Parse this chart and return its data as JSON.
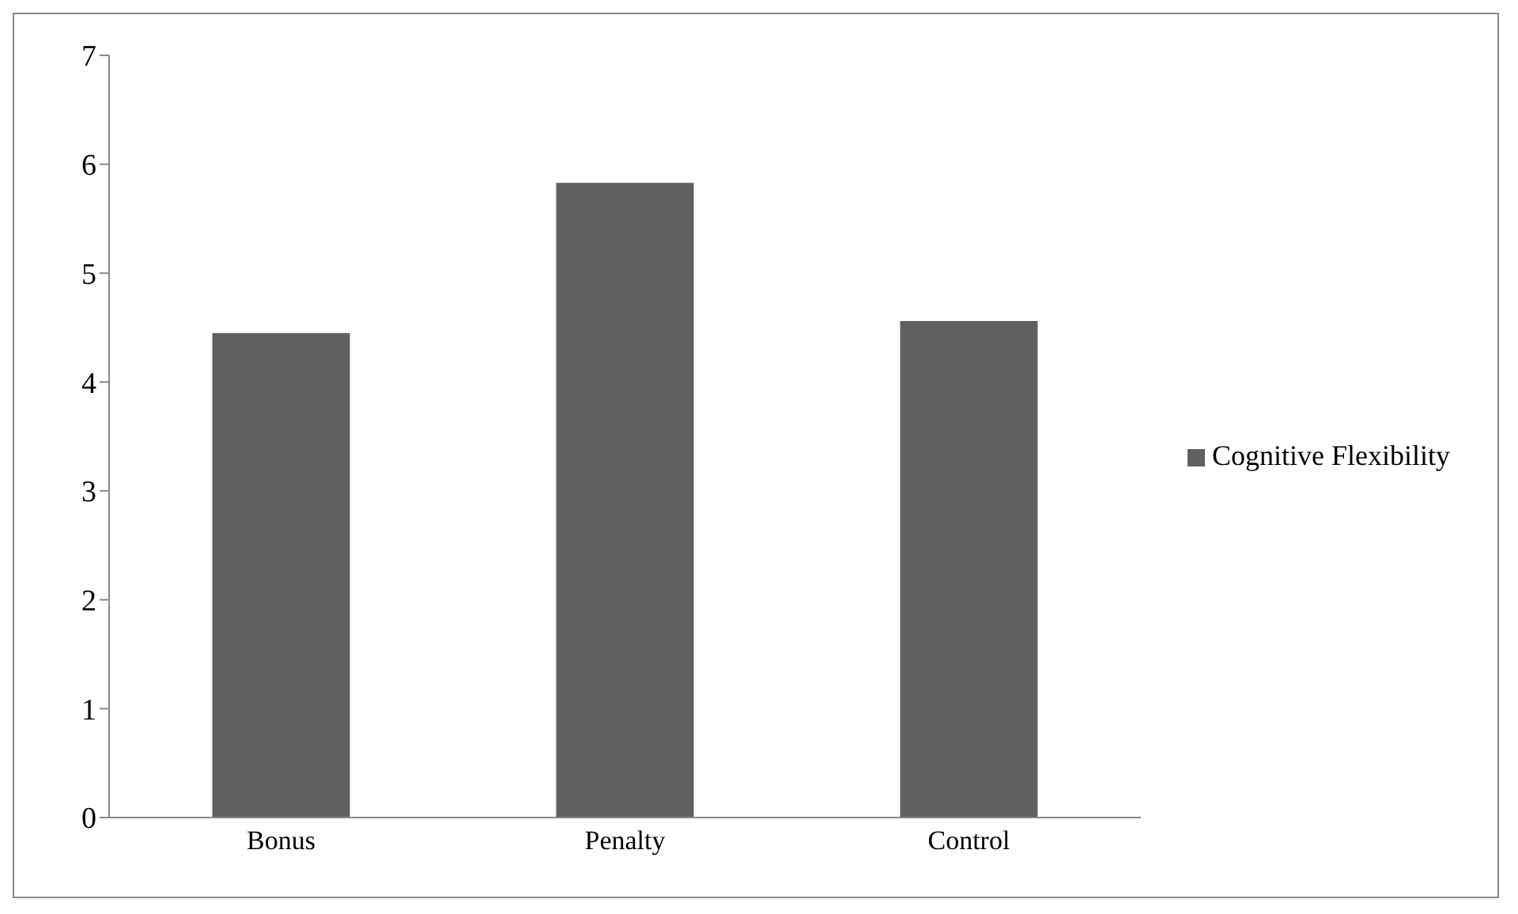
{
  "chart_data": {
    "type": "bar",
    "categories": [
      "Bonus",
      "Penalty",
      "Control"
    ],
    "series": [
      {
        "name": "Cognitive Flexibility",
        "color": "#606060",
        "values": [
          4.45,
          5.83,
          4.56
        ]
      }
    ],
    "ylim": [
      0,
      7
    ],
    "yticks": [
      0,
      1,
      2,
      3,
      4,
      5,
      6,
      7
    ],
    "grid": false,
    "legend": "right"
  }
}
